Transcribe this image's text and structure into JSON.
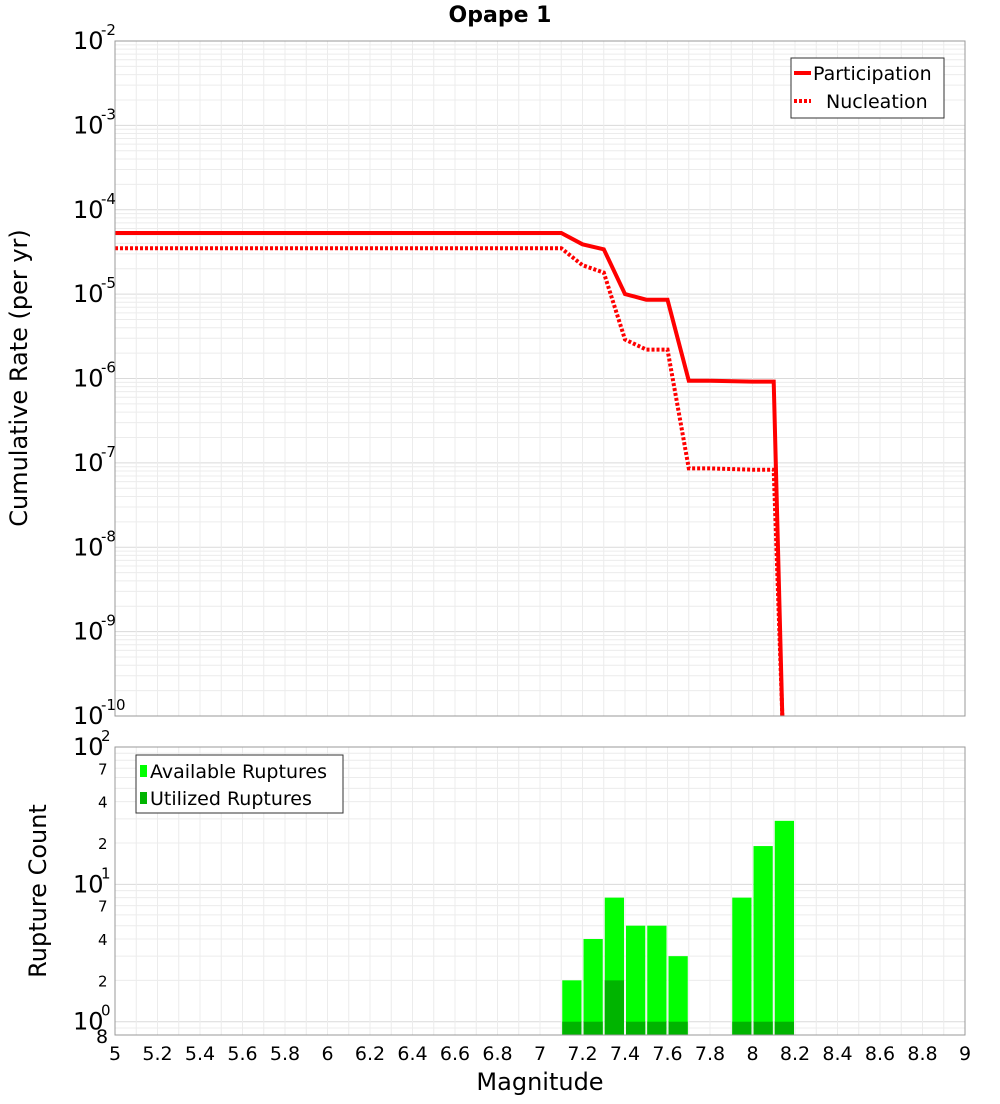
{
  "chart_data": [
    {
      "type": "line",
      "title": "Opape 1",
      "xlabel": "",
      "ylabel": "Cumulative Rate (per yr)",
      "xlim": [
        5,
        9
      ],
      "ylim": [
        1e-10,
        0.01
      ],
      "yscale": "log",
      "grid": true,
      "legend": "top-right",
      "y_tick_exponents": [
        "-10",
        "-9",
        "-8",
        "-7",
        "-6",
        "-5",
        "-4",
        "-3",
        "-2"
      ],
      "y_tick_base": "10",
      "series": [
        {
          "name": "Participation",
          "style": "solid",
          "color": "#ff0000",
          "x": [
            5.0,
            7.1,
            7.2,
            7.3,
            7.4,
            7.5,
            7.6,
            7.7,
            7.8,
            8.0,
            8.1,
            8.14
          ],
          "y": [
            5.3e-05,
            5.3e-05,
            3.9e-05,
            3.4e-05,
            1e-05,
            8.6e-06,
            8.6e-06,
            9.4e-07,
            9.4e-07,
            9.2e-07,
            9.2e-07,
            1e-10
          ]
        },
        {
          "name": "Nucleation",
          "style": "dotted",
          "color": "#ff0000",
          "x": [
            5.0,
            7.1,
            7.2,
            7.3,
            7.4,
            7.5,
            7.6,
            7.7,
            7.8,
            8.0,
            8.1,
            8.14
          ],
          "y": [
            3.5e-05,
            3.5e-05,
            2.2e-05,
            1.8e-05,
            2.9e-06,
            2.2e-06,
            2.2e-06,
            8.6e-08,
            8.6e-08,
            8.3e-08,
            8.3e-08,
            1e-10
          ]
        }
      ]
    },
    {
      "type": "bar",
      "title": "",
      "xlabel": "Magnitude",
      "ylabel": "Rupture Count",
      "xlim": [
        5,
        9
      ],
      "ylim": [
        0.8,
        100
      ],
      "yscale": "log",
      "grid": true,
      "legend": "top-left",
      "x_ticks": [
        "5",
        "5.2",
        "5.4",
        "5.6",
        "5.8",
        "6",
        "6.2",
        "6.4",
        "6.6",
        "6.8",
        "7",
        "7.2",
        "7.4",
        "7.6",
        "7.8",
        "8",
        "8.2",
        "8.4",
        "8.6",
        "8.8",
        "9"
      ],
      "y_major_ticks": [
        {
          "base": "10",
          "exp": "0",
          "value": 1
        },
        {
          "base": "10",
          "exp": "1",
          "value": 10
        },
        {
          "base": "10",
          "exp": "2",
          "value": 100
        }
      ],
      "y_minor_ticks": [
        {
          "label": "8",
          "value": 0.8
        },
        {
          "label": "2",
          "value": 2
        },
        {
          "label": "4",
          "value": 4
        },
        {
          "label": "7",
          "value": 7
        },
        {
          "label": "2",
          "value": 20
        },
        {
          "label": "4",
          "value": 40
        },
        {
          "label": "7",
          "value": 70
        }
      ],
      "bin_width": 0.1,
      "series": [
        {
          "name": "Available Ruptures",
          "color": "#00ff00",
          "x": [
            7.15,
            7.25,
            7.35,
            7.45,
            7.55,
            7.65,
            7.95,
            8.05,
            8.15
          ],
          "values": [
            2,
            4,
            8,
            5,
            5,
            3,
            8,
            19,
            29
          ]
        },
        {
          "name": "Utilized Ruptures",
          "color": "#00b400",
          "x": [
            7.15,
            7.25,
            7.35,
            7.45,
            7.55,
            7.65,
            7.95,
            8.05,
            8.15
          ],
          "values": [
            1,
            1,
            2,
            1,
            1,
            1,
            1,
            1,
            1
          ]
        }
      ]
    }
  ]
}
